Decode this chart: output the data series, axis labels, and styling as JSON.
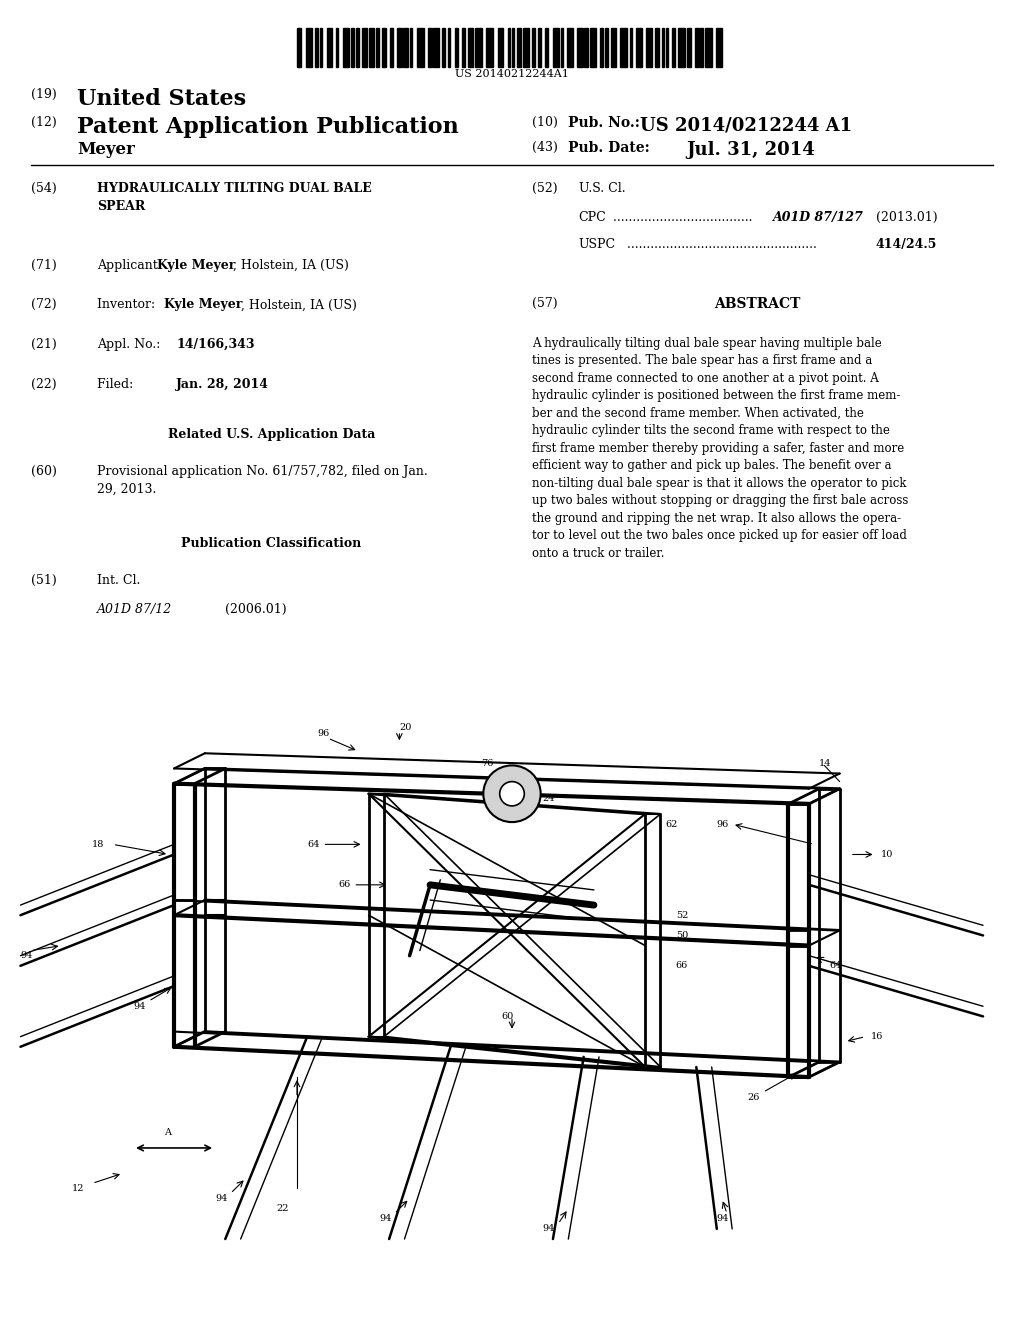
{
  "bg_color": "#ffffff",
  "barcode_text": "US 20140212244A1",
  "header_line1_num": "(19)",
  "header_line1_text": "United States",
  "header_line2_num": "(12)",
  "header_line2_text": "Patent Application Publication",
  "header_line2_right_num": "(10)",
  "header_line2_right_label": "Pub. No.:",
  "header_line2_right_val": "US 2014/0212244 A1",
  "header_line3_left": "Meyer",
  "header_line3_right_num": "(43)",
  "header_line3_right_label": "Pub. Date:",
  "header_line3_right_val": "Jul. 31, 2014",
  "field54_num": "(54)",
  "field54_title": "HYDRAULICALLY TILTING DUAL BALE\nSPEAR",
  "field52_num": "(52)",
  "field52_label": "U.S. Cl.",
  "field52_cpc_label": "CPC",
  "field52_cpc_dots": " ....................................",
  "field52_cpc_val": "A01D 87/127",
  "field52_cpc_year": "(2013.01)",
  "field52_uspc_label": "USPC",
  "field52_uspc_dots": " .................................................",
  "field52_uspc_val": "414/24.5",
  "field71_num": "(71)",
  "field71_text": "Applicant: ",
  "field71_name": "Kyle Meyer",
  "field71_loc": ", Holstein, IA (US)",
  "field57_num": "(57)",
  "field57_title": "ABSTRACT",
  "abstract_text": "A hydraulically tilting dual bale spear having multiple bale\ntines is presented. The bale spear has a first frame and a\nsecond frame connected to one another at a pivot point. A\nhydraulic cylinder is positioned between the first frame mem-\nber and the second frame member. When activated, the\nhydraulic cylinder tilts the second frame with respect to the\nfirst frame member thereby providing a safer, faster and more\nefficient way to gather and pick up bales. The benefit over a\nnon-tilting dual bale spear is that it allows the operator to pick\nup two bales without stopping or dragging the first bale across\nthe ground and ripping the net wrap. It also allows the opera-\ntor to level out the two bales once picked up for easier off load\nonto a truck or trailer.",
  "field72_num": "(72)",
  "field72_text": "Inventor:  ",
  "field72_name": "Kyle Meyer",
  "field72_loc": ", Holstein, IA (US)",
  "field21_num": "(21)",
  "field21_label": "Appl. No.: ",
  "field21_val": "14/166,343",
  "field22_num": "(22)",
  "field22_label": "Filed:    ",
  "field22_val": "Jan. 28, 2014",
  "related_title": "Related U.S. Application Data",
  "field60_num": "(60)",
  "field60_text": "Provisional application No. 61/757,782, filed on Jan.\n29, 2013.",
  "pubclass_title": "Publication Classification",
  "field51_num": "(51)",
  "field51_label": "Int. Cl.",
  "field51_class": "A01D 87/12",
  "field51_year": "(2006.01)"
}
